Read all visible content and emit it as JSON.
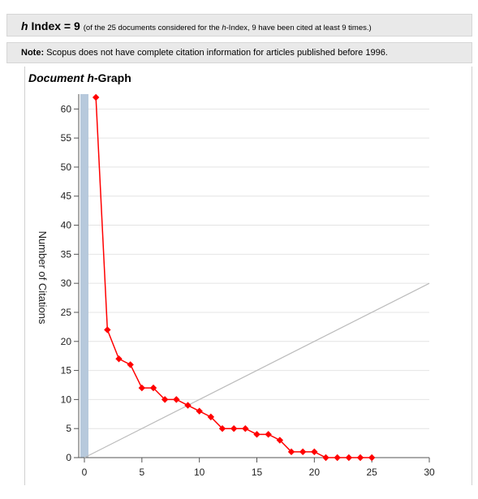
{
  "header": {
    "h_prefix": "h",
    "h_rest": " Index = 9",
    "detail_pre": "(of the 25 documents considered for the ",
    "detail_it": "h",
    "detail_post": "-Index, 9 have been cited at least 9 times.)"
  },
  "note": {
    "label": "Note:",
    "text": " Scopus does not have complete citation information for articles published before 1996."
  },
  "graph": {
    "title_it": "Document h",
    "title_rest": "-Graph"
  },
  "chart_data": {
    "type": "line",
    "title": "Document h-Graph",
    "xlabel": "",
    "ylabel": "Number of Citations",
    "xlim": [
      0,
      30
    ],
    "ylim": [
      0,
      62
    ],
    "x_ticks": [
      0,
      5,
      10,
      15,
      20,
      25,
      30
    ],
    "y_ticks": [
      0,
      5,
      10,
      15,
      20,
      25,
      30,
      35,
      40,
      45,
      50,
      55,
      60
    ],
    "grid": "horizontal",
    "series": [
      {
        "color": "#ff0000",
        "x": [
          1,
          2,
          3,
          4,
          5,
          6,
          7,
          8,
          9,
          10,
          11,
          12,
          13,
          14,
          15,
          16,
          17,
          18,
          19,
          20,
          21,
          22,
          23,
          24,
          25
        ],
        "y": [
          62,
          22,
          17,
          16,
          12,
          12,
          10,
          10,
          9,
          8,
          7,
          5,
          5,
          5,
          4,
          4,
          3,
          1,
          1,
          1,
          0,
          0,
          0,
          0,
          0
        ]
      }
    ],
    "reference_line": {
      "color": "#bbbbbb",
      "x": [
        0,
        30
      ],
      "y": [
        0,
        30
      ]
    },
    "highlight_bar": {
      "color": "#b7c9dc",
      "x": 0
    }
  }
}
